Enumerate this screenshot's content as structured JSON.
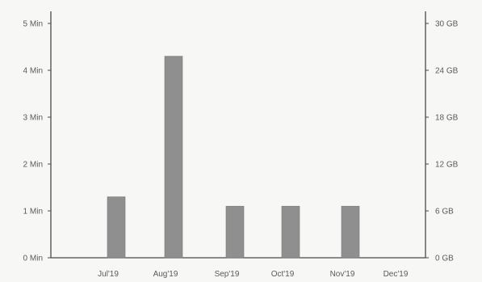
{
  "chart_data": {
    "type": "bar",
    "categories": [
      "Jul'19",
      "Aug'19",
      "Sep'19",
      "Oct'19",
      "Nov'19",
      "Dec'19"
    ],
    "series": [
      {
        "values": [
          1.3,
          4.3,
          1.1,
          1.1,
          1.1,
          0
        ]
      }
    ],
    "ylim": [
      0,
      5.5
    ],
    "y_ticks": [
      0,
      1,
      2,
      3,
      4,
      5
    ],
    "y_tick_labels": [
      "0 Min",
      "1 Min",
      "2 Min",
      "3 Min",
      "4 Min",
      "5 Min"
    ],
    "y2lim": [
      0,
      33
    ],
    "y2_ticks": [
      0,
      6,
      12,
      18,
      24,
      30
    ],
    "y2_tick_labels": [
      "0 GB",
      "6 GB",
      "12 GB",
      "18 GB",
      "24 GB",
      "30 GB"
    ],
    "grid": false,
    "colors": {
      "bar": "#8f8f8f",
      "axis": "#4a4a4a",
      "text": "#5a5a5a"
    }
  }
}
